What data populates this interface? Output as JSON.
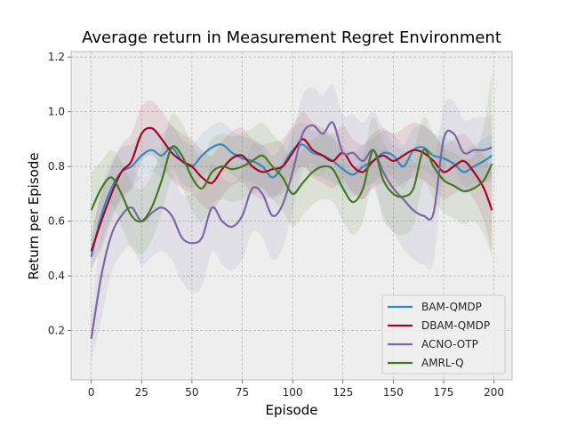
{
  "chart_data": {
    "type": "line",
    "title": "Average return in Measurement Regret Environment",
    "xlabel": "Episode",
    "ylabel": "Return per Episode",
    "xlim": [
      -10,
      209
    ],
    "ylim": [
      0.02,
      1.22
    ],
    "xticks": [
      0,
      25,
      50,
      75,
      100,
      125,
      150,
      175,
      200
    ],
    "yticks": [
      0.2,
      0.4,
      0.6,
      0.8,
      1.0,
      1.2
    ],
    "ytick_labels": [
      "0.2",
      "0.4",
      "0.6",
      "0.8",
      "1.0",
      "1.2"
    ],
    "grid": true,
    "legend_position": "lower-right",
    "x": [
      0,
      5,
      10,
      15,
      20,
      25,
      30,
      35,
      40,
      45,
      50,
      55,
      60,
      65,
      70,
      75,
      80,
      85,
      90,
      95,
      100,
      105,
      110,
      115,
      120,
      125,
      130,
      135,
      140,
      145,
      150,
      155,
      160,
      165,
      170,
      175,
      180,
      185,
      190,
      195,
      199
    ],
    "series": [
      {
        "name": "BAM-QMDP",
        "color": "#348abd",
        "values": [
          0.47,
          0.62,
          0.72,
          0.78,
          0.8,
          0.84,
          0.86,
          0.84,
          0.87,
          0.82,
          0.8,
          0.84,
          0.87,
          0.88,
          0.85,
          0.83,
          0.82,
          0.8,
          0.76,
          0.8,
          0.86,
          0.88,
          0.85,
          0.84,
          0.82,
          0.79,
          0.77,
          0.8,
          0.82,
          0.85,
          0.84,
          0.8,
          0.86,
          0.87,
          0.84,
          0.83,
          0.81,
          0.78,
          0.8,
          0.82,
          0.84
        ],
        "band": [
          0.06,
          0.1,
          0.1,
          0.09,
          0.08,
          0.08,
          0.08,
          0.08,
          0.08,
          0.08,
          0.08,
          0.08,
          0.08,
          0.08,
          0.08,
          0.08,
          0.08,
          0.08,
          0.08,
          0.08,
          0.08,
          0.08,
          0.08,
          0.08,
          0.08,
          0.08,
          0.08,
          0.08,
          0.08,
          0.08,
          0.08,
          0.08,
          0.08,
          0.08,
          0.08,
          0.08,
          0.08,
          0.08,
          0.08,
          0.08,
          0.08
        ]
      },
      {
        "name": "DBAM-QMDP",
        "color": "#a60628",
        "values": [
          0.49,
          0.6,
          0.7,
          0.78,
          0.82,
          0.92,
          0.94,
          0.9,
          0.85,
          0.82,
          0.8,
          0.76,
          0.74,
          0.79,
          0.83,
          0.84,
          0.8,
          0.78,
          0.79,
          0.8,
          0.85,
          0.9,
          0.86,
          0.84,
          0.82,
          0.85,
          0.8,
          0.78,
          0.82,
          0.84,
          0.82,
          0.84,
          0.86,
          0.85,
          0.82,
          0.78,
          0.8,
          0.82,
          0.78,
          0.72,
          0.64
        ],
        "band": [
          0.06,
          0.1,
          0.1,
          0.1,
          0.1,
          0.1,
          0.1,
          0.1,
          0.1,
          0.1,
          0.1,
          0.1,
          0.1,
          0.1,
          0.1,
          0.1,
          0.1,
          0.1,
          0.1,
          0.1,
          0.1,
          0.1,
          0.1,
          0.1,
          0.1,
          0.1,
          0.1,
          0.1,
          0.1,
          0.1,
          0.1,
          0.1,
          0.1,
          0.1,
          0.1,
          0.1,
          0.1,
          0.1,
          0.1,
          0.12,
          0.15
        ]
      },
      {
        "name": "ACNO-OTP",
        "color": "#7a68a6",
        "values": [
          0.17,
          0.4,
          0.55,
          0.62,
          0.65,
          0.6,
          0.63,
          0.65,
          0.62,
          0.54,
          0.52,
          0.54,
          0.65,
          0.6,
          0.58,
          0.62,
          0.72,
          0.7,
          0.62,
          0.66,
          0.78,
          0.92,
          0.95,
          0.92,
          0.96,
          0.85,
          0.85,
          0.82,
          0.86,
          0.78,
          0.72,
          0.68,
          0.64,
          0.62,
          0.63,
          0.9,
          0.92,
          0.85,
          0.86,
          0.86,
          0.87
        ],
        "band": [
          0.08,
          0.16,
          0.14,
          0.14,
          0.14,
          0.16,
          0.16,
          0.16,
          0.16,
          0.16,
          0.18,
          0.18,
          0.16,
          0.16,
          0.16,
          0.16,
          0.16,
          0.16,
          0.16,
          0.16,
          0.14,
          0.14,
          0.14,
          0.14,
          0.14,
          0.14,
          0.14,
          0.14,
          0.14,
          0.16,
          0.16,
          0.18,
          0.18,
          0.18,
          0.18,
          0.12,
          0.12,
          0.12,
          0.12,
          0.12,
          0.12
        ]
      },
      {
        "name": "AMRL-Q",
        "color": "#467821",
        "values": [
          0.64,
          0.72,
          0.76,
          0.7,
          0.62,
          0.6,
          0.65,
          0.75,
          0.87,
          0.84,
          0.76,
          0.72,
          0.78,
          0.8,
          0.79,
          0.8,
          0.82,
          0.84,
          0.8,
          0.76,
          0.7,
          0.74,
          0.78,
          0.8,
          0.79,
          0.72,
          0.67,
          0.72,
          0.86,
          0.75,
          0.7,
          0.69,
          0.72,
          0.86,
          0.8,
          0.75,
          0.73,
          0.71,
          0.72,
          0.75,
          0.81
        ],
        "band": [
          0.14,
          0.1,
          0.1,
          0.12,
          0.12,
          0.12,
          0.12,
          0.12,
          0.12,
          0.12,
          0.12,
          0.12,
          0.12,
          0.12,
          0.12,
          0.12,
          0.12,
          0.12,
          0.12,
          0.12,
          0.12,
          0.12,
          0.12,
          0.12,
          0.12,
          0.12,
          0.12,
          0.12,
          0.12,
          0.14,
          0.14,
          0.14,
          0.14,
          0.12,
          0.12,
          0.12,
          0.12,
          0.12,
          0.12,
          0.2,
          0.34
        ]
      }
    ]
  }
}
